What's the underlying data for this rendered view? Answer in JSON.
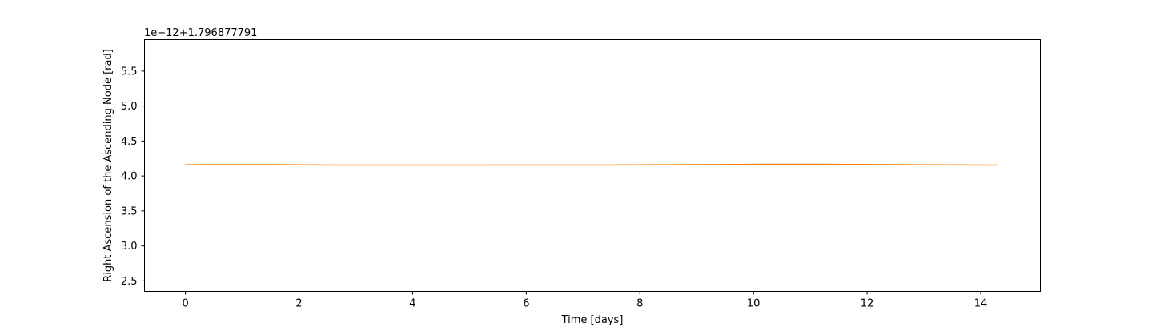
{
  "chart_data": {
    "type": "line",
    "title": "",
    "xlabel": "Time [days]",
    "ylabel": "Right Ascension of the Ascending Node [rad]",
    "offset_text": "1e−12+1.796877791",
    "xlim": [
      -0.72,
      15.05
    ],
    "ylim": [
      2.35,
      5.95
    ],
    "x_ticks": [
      0,
      2,
      4,
      6,
      8,
      10,
      12,
      14
    ],
    "x_tick_labels": [
      "0",
      "2",
      "4",
      "6",
      "8",
      "10",
      "12",
      "14"
    ],
    "y_ticks": [
      2.5,
      3.0,
      3.5,
      4.0,
      4.5,
      5.0,
      5.5
    ],
    "y_tick_labels": [
      "2.5",
      "3.0",
      "3.5",
      "4.0",
      "4.5",
      "5.0",
      "5.5"
    ],
    "grid": false,
    "legend": "none",
    "colors": {
      "line": "#ff7f0e",
      "axes": "#000000",
      "background": "#ffffff"
    },
    "series": [
      {
        "x": [
          0,
          0.7,
          1.6,
          2.7,
          3.8,
          5.0,
          6.2,
          7.4,
          8.4,
          9.4,
          10.2,
          11.0,
          11.8,
          12.6,
          13.4,
          14.3
        ],
        "values": [
          4.16,
          4.162,
          4.161,
          4.155,
          4.155,
          4.156,
          4.157,
          4.157,
          4.16,
          4.163,
          4.167,
          4.167,
          4.164,
          4.161,
          4.158,
          4.155
        ]
      }
    ]
  }
}
